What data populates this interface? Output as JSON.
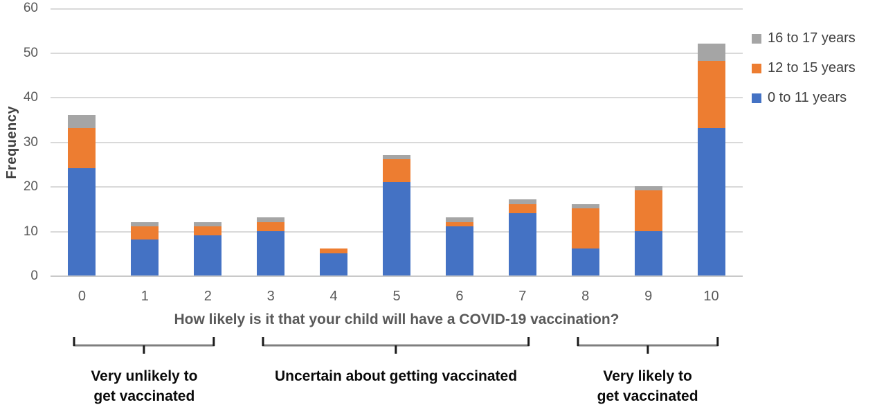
{
  "chart_data": {
    "type": "bar",
    "stacked": true,
    "xlabel": "How likely is it that your child will have a COVID-19 vaccination?",
    "ylabel": "Frequency",
    "ylim": [
      0,
      60
    ],
    "ytick_step": 10,
    "grid": true,
    "legend_position": "top-right",
    "categories": [
      "0",
      "1",
      "2",
      "3",
      "4",
      "5",
      "6",
      "7",
      "8",
      "9",
      "10"
    ],
    "series": [
      {
        "name": "0 to 11 years",
        "color": "#4472C4",
        "values": [
          24,
          8,
          9,
          10,
          5,
          21,
          11,
          14,
          6,
          10,
          33
        ]
      },
      {
        "name": "12 to 15 years",
        "color": "#ED7D31",
        "values": [
          9,
          3,
          2,
          2,
          1,
          5,
          1,
          2,
          9,
          9,
          15
        ]
      },
      {
        "name": "16 to 17 years",
        "color": "#A5A5A5",
        "values": [
          3,
          1,
          1,
          1,
          0,
          1,
          1,
          1,
          1,
          1,
          4
        ]
      }
    ],
    "legend_order": [
      "16 to 17 years",
      "12 to 15 years",
      "0 to 11 years"
    ],
    "annotations": [
      {
        "label": "Very unlikely to\nget vaccinated",
        "from_category": "0",
        "to_category": "2"
      },
      {
        "label": "Uncertain about getting vaccinated",
        "from_category": "3",
        "to_category": "7"
      },
      {
        "label": "Very likely to\nget vaccinated",
        "from_category": "8",
        "to_category": "10"
      }
    ],
    "colors": {
      "gridline": "#d9d9d9",
      "axis_text": "#595959",
      "brace": "#7f7f7f",
      "annotation_text": "#0a0a0a"
    }
  }
}
